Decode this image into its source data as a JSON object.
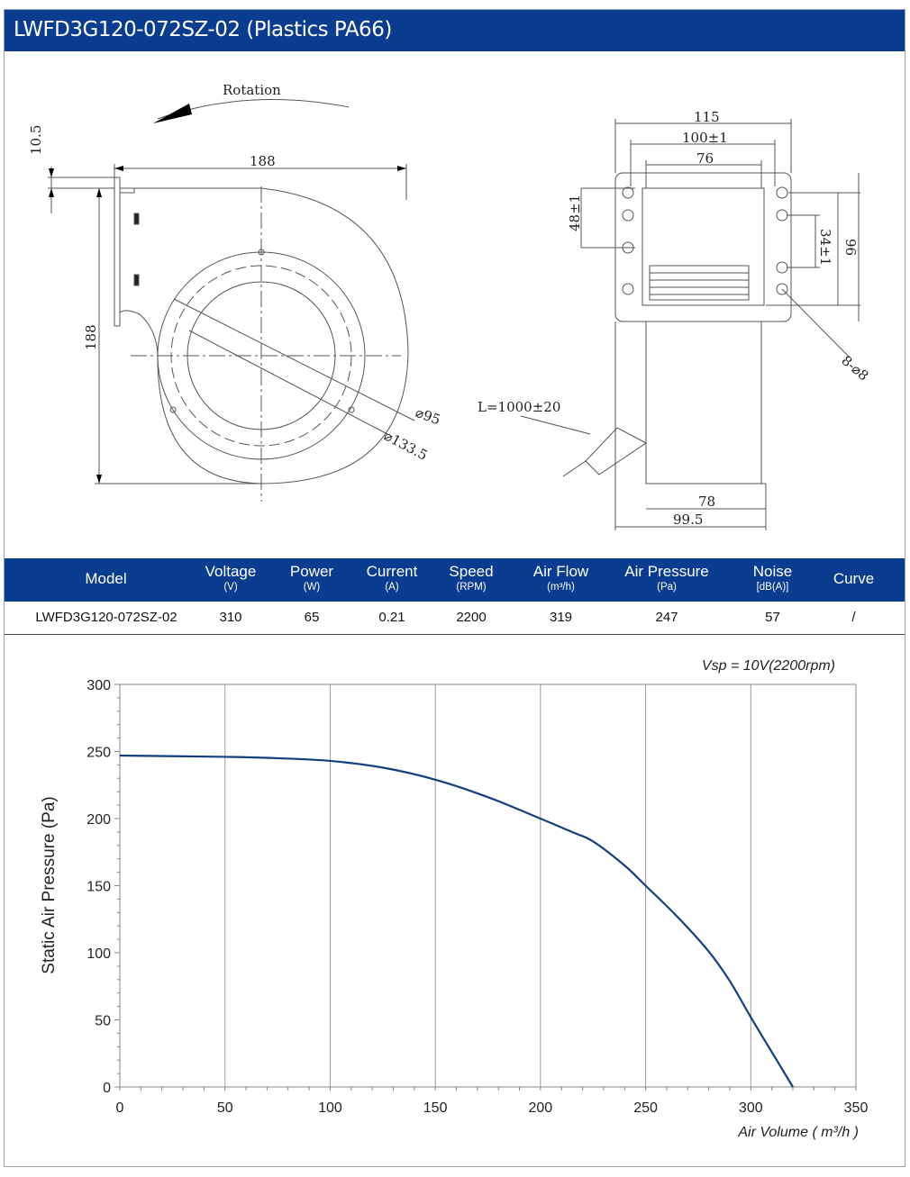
{
  "title": "LWFD3G120-072SZ-02 (Plastics PA66)",
  "drawing": {
    "rotation_label": "Rotation",
    "dim_10_5": "10.5",
    "dim_188_top": "188",
    "dim_188_left": "188",
    "dia_95": "⌀95",
    "dia_133_5": "⌀133.5",
    "dim_115": "115",
    "dim_100": "100±1",
    "dim_76": "76",
    "dim_48": "48±1",
    "dim_34": "34±1",
    "dim_96": "96",
    "holes": "8-⌀8",
    "cable": "L=1000±20",
    "dim_78": "78",
    "dim_99_5": "99.5"
  },
  "spec": {
    "headers": [
      {
        "name": "Model",
        "unit": ""
      },
      {
        "name": "Voltage",
        "unit": "(V)"
      },
      {
        "name": "Power",
        "unit": "(W)"
      },
      {
        "name": "Current",
        "unit": "(A)"
      },
      {
        "name": "Speed",
        "unit": "(RPM)"
      },
      {
        "name": "Air Flow",
        "unit": "(m³/h)"
      },
      {
        "name": "Air Pressure",
        "unit": "(Pa)"
      },
      {
        "name": "Noise",
        "unit": "[dB(A)]"
      },
      {
        "name": "Curve",
        "unit": ""
      }
    ],
    "row": [
      "LWFD3G120-072SZ-02",
      "310",
      "65",
      "0.21",
      "2200",
      "319",
      "247",
      "57",
      "/"
    ]
  },
  "chart_data": {
    "type": "line",
    "annotation": "Vsp = 10V(2200rpm)",
    "xlabel": "Air Volume ( m³/h )",
    "ylabel": "Static Air Pressure  (Pa)",
    "xlim": [
      0,
      350
    ],
    "ylim": [
      0,
      300
    ],
    "xticks": [
      "0",
      "50",
      "100",
      "150",
      "200",
      "250",
      "300",
      "350"
    ],
    "yticks": [
      "0",
      "50",
      "100",
      "150",
      "200",
      "250",
      "300"
    ],
    "grid": "vertical",
    "line_color": "#123f7d",
    "series": [
      {
        "x": [
          0,
          50,
          75,
          100,
          125,
          150,
          175,
          200,
          215,
          225,
          240,
          250,
          265,
          280,
          290,
          300,
          310,
          320
        ],
        "y": [
          247,
          246,
          245,
          243,
          238,
          229,
          216,
          200,
          190,
          183,
          165,
          150,
          127,
          101,
          79,
          52,
          26,
          0
        ]
      }
    ]
  }
}
